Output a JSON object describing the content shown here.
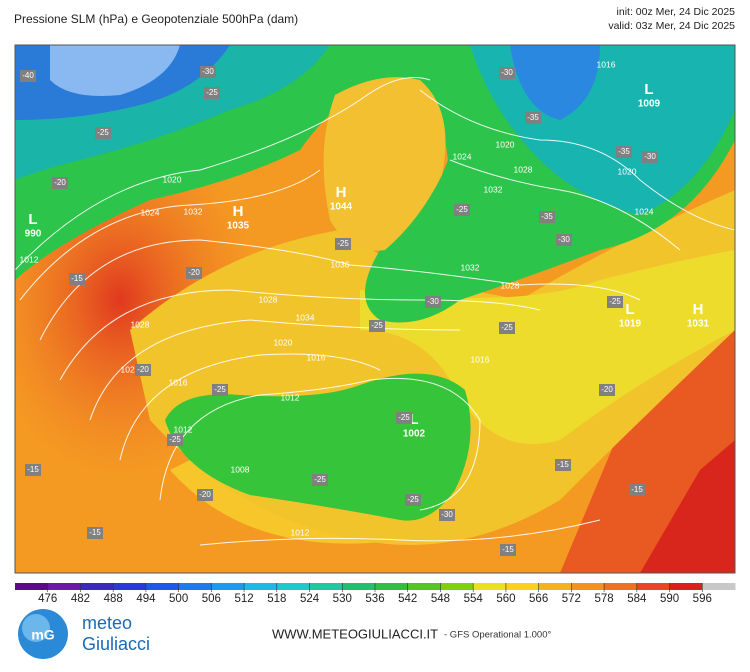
{
  "header": {
    "title": "Pressione SLM (hPa) e Geopotenziale 500hPa (dam)",
    "init": "init: 00z Mer, 24 Dic 2025",
    "valid": "valid: 03z Mer, 24 Dic 2025"
  },
  "map": {
    "centers": [
      {
        "type": "H",
        "value": "1035"
      },
      {
        "type": "H",
        "value": "1044"
      },
      {
        "type": "L",
        "value": "990"
      },
      {
        "type": "L",
        "value": "1009"
      },
      {
        "type": "L",
        "value": "1002"
      },
      {
        "type": "H",
        "value": "1031"
      },
      {
        "type": "L",
        "value": "1019"
      }
    ],
    "isobar_labels": [
      "1036",
      "1032",
      "1028",
      "1024",
      "1020",
      "1016",
      "1012",
      "1008",
      "1012",
      "1016",
      "1020",
      "1024",
      "1028",
      "1032",
      "1032",
      "1028",
      "1024",
      "1020",
      "1016",
      "1020",
      "1024",
      "1028",
      "1034",
      "1012",
      "1016",
      "1012"
    ],
    "geopotential_labels": [
      "-40",
      "-30",
      "-25",
      "-25",
      "-20",
      "-25",
      "-25",
      "-20",
      "-15",
      "-20",
      "-25",
      "-25",
      "-20",
      "-15",
      "-25",
      "-25",
      "-30",
      "-15",
      "-15",
      "-15",
      "-15",
      "-25",
      "-25",
      "-30",
      "-30",
      "-35",
      "-25",
      "-30",
      "-35",
      "-30",
      "-35",
      "-25",
      "-20"
    ]
  },
  "colorbar": {
    "ticks": [
      476,
      482,
      488,
      494,
      500,
      506,
      512,
      518,
      524,
      530,
      536,
      542,
      548,
      554,
      560,
      566,
      572,
      578,
      584,
      590,
      596
    ],
    "colors": [
      "#5a0a8c",
      "#6a1aa8",
      "#3a2ac0",
      "#2a3ad8",
      "#1a5ae8",
      "#1a7af0",
      "#1a9af0",
      "#20b8e8",
      "#20c8c8",
      "#20c8a0",
      "#20c070",
      "#30c040",
      "#50c820",
      "#80d010",
      "#e8e020",
      "#f8d020",
      "#f8b020",
      "#f89020",
      "#f07020",
      "#e84820",
      "#d82020",
      "#c8c8c8"
    ]
  },
  "footer": {
    "brand_top": "meteo",
    "brand_bottom": "Giuliacci",
    "site": "WWW.METEOGIULIACCI.IT",
    "model": "- GFS Operational 1.000°"
  }
}
